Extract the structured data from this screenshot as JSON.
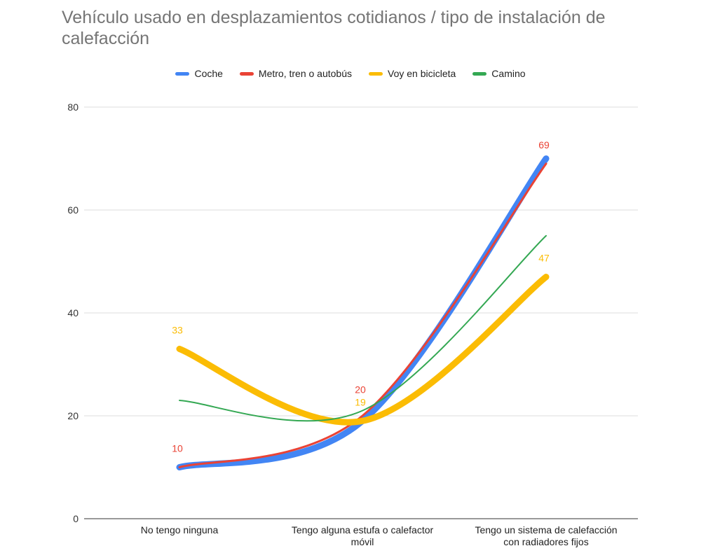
{
  "chart_data": {
    "type": "line",
    "title": "Vehículo usado en desplazamientos cotidianos / tipo de instalación de calefacción",
    "categories": [
      "No tengo ninguna",
      "Tengo alguna estufa o calefactor móvil",
      "Tengo un sistema de calefacción con radiadores fijos"
    ],
    "category_lines": [
      [
        "No tengo ninguna"
      ],
      [
        "Tengo alguna estufa o calefactor",
        "móvil"
      ],
      [
        "Tengo un sistema de calefacción",
        "con radiadores fijos"
      ]
    ],
    "ylim": [
      0,
      80
    ],
    "yticks": [
      "0",
      "20",
      "40",
      "60",
      "80"
    ],
    "legend_position": "top",
    "grid": true,
    "series": [
      {
        "name": "Coche",
        "color": "#4285f4",
        "width": 9,
        "values": [
          10,
          19,
          70
        ],
        "labels": []
      },
      {
        "name": "Metro, tren o autobús",
        "color": "#ea4335",
        "width": 3,
        "values": [
          10,
          20,
          69
        ],
        "labels": [
          "10",
          "20",
          "69"
        ]
      },
      {
        "name": "Voy en bicicleta",
        "color": "#fbbc04",
        "width": 9,
        "values": [
          33,
          19,
          47
        ],
        "labels": [
          "33",
          "19",
          "47"
        ]
      },
      {
        "name": "Camino",
        "color": "#34a853",
        "width": 2,
        "values": [
          23,
          21,
          55
        ],
        "labels": []
      }
    ]
  }
}
